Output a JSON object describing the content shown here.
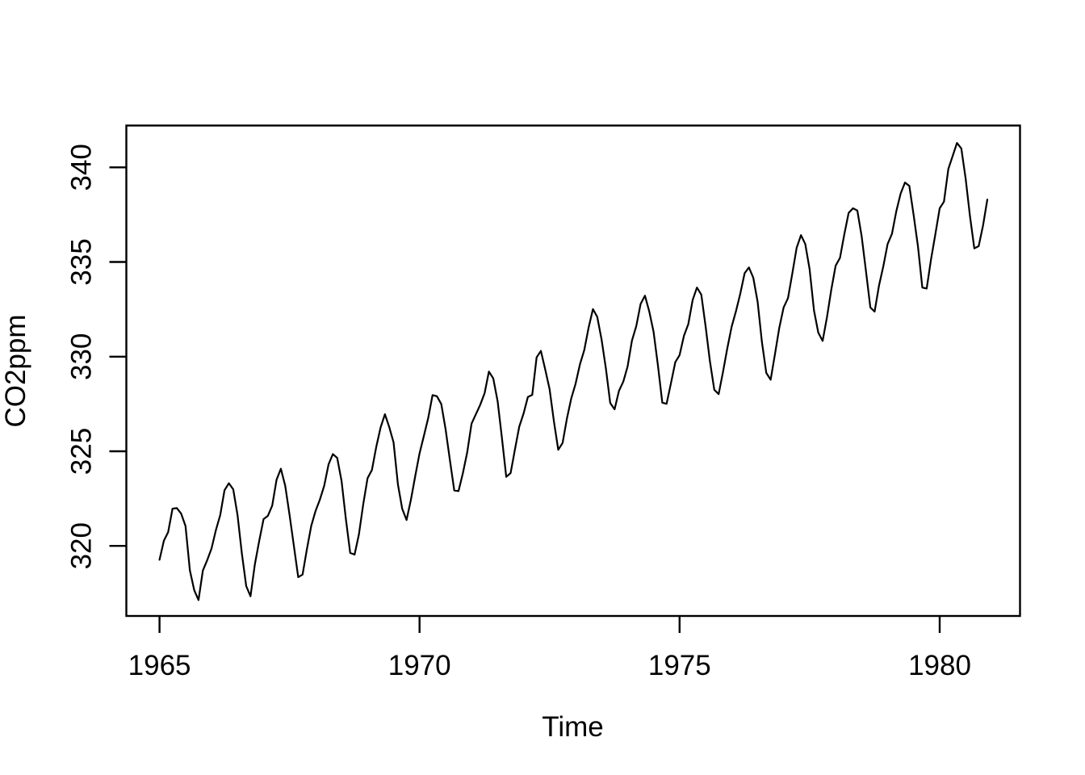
{
  "figure": {
    "background_color": "#ffffff",
    "foreground_color": "#000000",
    "description": "R base-graphics line plot of monthly atmospheric CO2 concentration versus time"
  },
  "chart_data": {
    "type": "line",
    "title": "",
    "xlabel": "Time",
    "ylabel": "CO2ppm",
    "x_start": 1965,
    "x_end_inclusive": 1980.9167,
    "frequency": 12,
    "x_ticks": [
      1965,
      1970,
      1975,
      1980
    ],
    "y_ticks": [
      320,
      325,
      330,
      335,
      340
    ],
    "xlim": [
      1964.362,
      1981.545
    ],
    "ylim": [
      316.3,
      342.21
    ],
    "grid": false,
    "legend": "none",
    "line_color": "#000000",
    "series": [
      {
        "name": "CO2ppm",
        "values": [
          319.27,
          320.28,
          320.73,
          321.97,
          322.0,
          321.71,
          321.05,
          318.71,
          317.66,
          317.14,
          318.7,
          319.25,
          319.86,
          320.83,
          321.63,
          322.94,
          323.31,
          322.99,
          321.64,
          319.6,
          317.88,
          317.34,
          319.03,
          320.27,
          321.42,
          321.59,
          322.13,
          323.5,
          324.08,
          323.18,
          321.63,
          320.01,
          318.35,
          318.49,
          319.81,
          321.05,
          321.85,
          322.44,
          323.18,
          324.31,
          324.85,
          324.65,
          323.43,
          321.4,
          319.63,
          319.54,
          320.61,
          322.19,
          323.58,
          324.01,
          325.22,
          326.25,
          326.96,
          326.29,
          325.47,
          323.25,
          321.97,
          321.37,
          322.44,
          323.7,
          324.89,
          325.82,
          326.77,
          327.97,
          327.91,
          327.5,
          326.18,
          324.53,
          322.93,
          322.9,
          323.85,
          324.96,
          326.46,
          326.96,
          327.46,
          328.07,
          329.21,
          328.85,
          327.65,
          325.72,
          323.65,
          323.85,
          325.08,
          326.3,
          327.0,
          327.87,
          327.98,
          329.96,
          330.3,
          329.32,
          328.28,
          326.56,
          325.08,
          325.44,
          326.74,
          327.79,
          328.57,
          329.6,
          330.34,
          331.53,
          332.51,
          332.1,
          330.9,
          329.35,
          327.55,
          327.22,
          328.19,
          328.68,
          329.48,
          330.85,
          331.62,
          332.78,
          333.22,
          332.38,
          331.31,
          329.53,
          327.57,
          327.51,
          328.59,
          329.71,
          330.08,
          331.1,
          331.72,
          332.99,
          333.65,
          333.28,
          331.58,
          329.75,
          328.25,
          328.02,
          329.17,
          330.44,
          331.58,
          332.39,
          333.33,
          334.41,
          334.71,
          334.17,
          332.89,
          330.77,
          329.14,
          328.78,
          330.14,
          331.52,
          332.6,
          333.09,
          334.38,
          335.75,
          336.42,
          335.95,
          334.61,
          332.44,
          331.27,
          330.83,
          332.09,
          333.53,
          334.8,
          335.22,
          336.47,
          337.59,
          337.84,
          337.72,
          336.37,
          334.51,
          332.6,
          332.38,
          333.75,
          334.78,
          335.95,
          336.49,
          337.69,
          338.61,
          339.2,
          339.02,
          337.46,
          335.82,
          333.65,
          333.6,
          335.12,
          336.46,
          337.84,
          338.19,
          339.91,
          340.6,
          341.29,
          341.0,
          339.39,
          337.43,
          335.72,
          335.84,
          336.93,
          338.3
        ]
      }
    ]
  }
}
